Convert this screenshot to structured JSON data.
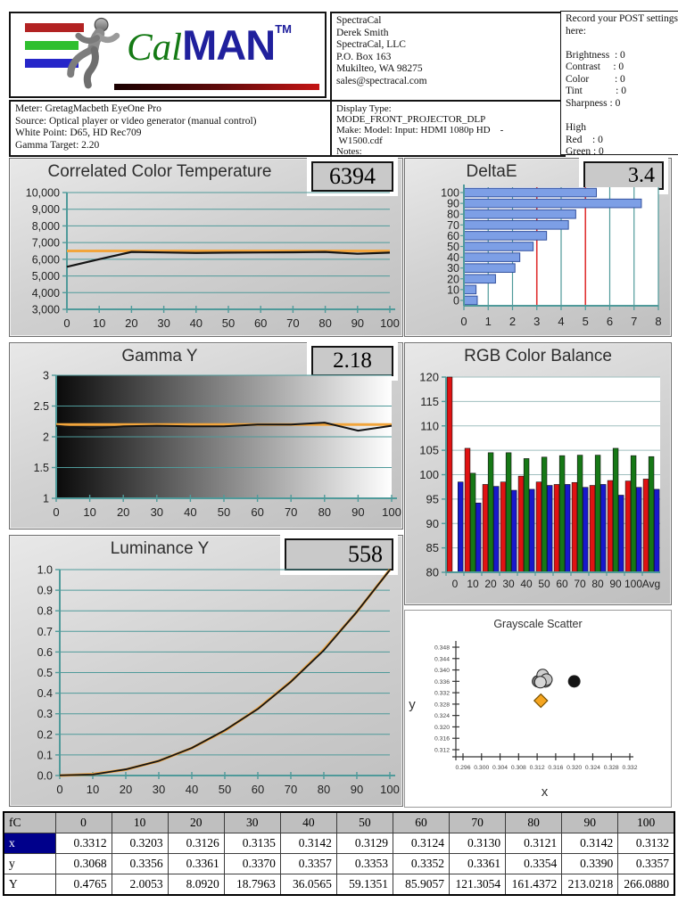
{
  "header": {
    "logo": {
      "cal": "Cal",
      "man": "MAN",
      "tm": "TM"
    },
    "meter_info": {
      "lines": [
        "Meter: GretagMacbeth EyeOne Pro",
        "Source: Optical player or video generator (manual control)",
        "White Point: D65, HD Rec709",
        "Gamma Target: 2.20"
      ]
    },
    "contact": {
      "lines": [
        "SpectraCal",
        "Derek Smith",
        "SpectraCal, LLC",
        "P.O. Box 163",
        "Mukilteo, WA 98275",
        "sales@spectracal.com"
      ]
    },
    "display_info": {
      "lines": [
        "Display Type:",
        "MODE_FRONT_PROJECTOR_DLP",
        "Make: Model: Input: HDMI 1080p HD    -",
        " W1500.cdf",
        "Notes:"
      ]
    },
    "post_settings": {
      "lines": [
        "Record your POST settings",
        "here:",
        "",
        "Brightness  : 0",
        "Contrast     : 0",
        "Color          : 0",
        "Tint             : 0",
        "Sharpness : 0",
        "",
        "High",
        "Red    : 0",
        "Green : 0"
      ]
    }
  },
  "chart_data": [
    {
      "type": "line",
      "title": "Correlated Color Temperature",
      "badge": "6394",
      "x": [
        0,
        10,
        20,
        30,
        40,
        50,
        60,
        70,
        80,
        90,
        100
      ],
      "series": [
        {
          "name": "measured CCT",
          "color": "#141414",
          "width": 2.2,
          "values": [
            5550,
            6000,
            6440,
            6410,
            6380,
            6400,
            6410,
            6420,
            6440,
            6330,
            6400
          ]
        }
      ],
      "target": {
        "value": 6500,
        "color": "#f2a53c"
      },
      "xlim": [
        0,
        100
      ],
      "xticks": [
        0,
        10,
        20,
        30,
        40,
        50,
        60,
        70,
        80,
        90,
        100
      ],
      "ylim": [
        3000,
        10000
      ],
      "yticks": [
        3000,
        4000,
        5000,
        6000,
        7000,
        8000,
        9000,
        10000
      ],
      "ytick_labels": [
        "3,000",
        "4,000",
        "5,000",
        "6,000",
        "7,000",
        "8,000",
        "9,000",
        "10,000"
      ],
      "grid": "horizontal"
    },
    {
      "type": "bar-horizontal",
      "title": "DeltaE",
      "badge": "3.4",
      "categories": [
        "100",
        "90",
        "80",
        "70",
        "60",
        "50",
        "40",
        "30",
        "20",
        "10",
        "0"
      ],
      "values": [
        5.45,
        7.3,
        4.6,
        4.3,
        3.4,
        2.85,
        2.3,
        2.1,
        1.3,
        0.5,
        0.55
      ],
      "xlim": [
        0,
        8
      ],
      "xticks": [
        0,
        1,
        2,
        3,
        4,
        5,
        6,
        7,
        8
      ],
      "reference_lines": [
        3,
        5
      ],
      "bar_color": "#7d9fe6",
      "bar_border": "#33519e",
      "reference_color": "#e03232",
      "grid": "vertical"
    },
    {
      "type": "line",
      "title": "Gamma Y",
      "badge": "2.18",
      "x": [
        0,
        10,
        20,
        30,
        40,
        50,
        60,
        70,
        80,
        90,
        100
      ],
      "series": [
        {
          "name": "measured gamma",
          "color": "#141414",
          "width": 2,
          "values": [
            2.18,
            2.13,
            2.17,
            2.18,
            2.17,
            2.17,
            2.2,
            2.2,
            2.23,
            2.1,
            2.18
          ]
        }
      ],
      "target": {
        "value": 2.2,
        "color": "#f2a53c"
      },
      "xlim": [
        0,
        100
      ],
      "xticks": [
        0,
        10,
        20,
        30,
        40,
        50,
        60,
        70,
        80,
        90,
        100
      ],
      "ylim": [
        1,
        3
      ],
      "yticks": [
        1,
        1.5,
        2,
        2.5,
        3
      ],
      "ytick_labels": [
        "1",
        "1.5",
        "2",
        "2.5",
        "3"
      ],
      "plot_background": "black-to-white-gradient",
      "grid": "horizontal"
    },
    {
      "type": "grouped-bar",
      "title": "RGB Color Balance",
      "categories": [
        "0",
        "10",
        "20",
        "30",
        "40",
        "50",
        "60",
        "70",
        "80",
        "90",
        "100",
        "Avg"
      ],
      "series": [
        {
          "name": "Red",
          "color": "#e01212",
          "values": [
            120,
            105.4,
            98,
            98.5,
            99.7,
            98.5,
            98,
            98.4,
            97.8,
            98.8,
            98.7,
            99.1
          ]
        },
        {
          "name": "Green",
          "color": "#167816",
          "values": [
            80,
            100.3,
            104.5,
            104.5,
            103.3,
            103.6,
            103.9,
            104,
            104,
            105.4,
            103.9,
            103.7
          ]
        },
        {
          "name": "Blue",
          "color": "#1818cc",
          "values": [
            98.5,
            94.2,
            97.6,
            96.8,
            97,
            97.8,
            98,
            97.4,
            98,
            95.8,
            97.4,
            97
          ]
        }
      ],
      "ylim": [
        80,
        120
      ],
      "yticks": [
        80,
        85,
        90,
        95,
        100,
        105,
        110,
        115,
        120
      ],
      "grid": "horizontal"
    },
    {
      "type": "line",
      "title": "Luminance Y",
      "badge": "558",
      "x": [
        0,
        10,
        20,
        30,
        40,
        50,
        60,
        70,
        80,
        90,
        100
      ],
      "series": [
        {
          "name": "target",
          "color": "#f2a53c",
          "width": 3,
          "values": [
            0,
            0.0063,
            0.0289,
            0.0707,
            0.1332,
            0.2176,
            0.325,
            0.4564,
            0.6125,
            0.7941,
            1.0
          ]
        },
        {
          "name": "measured",
          "color": "#141414",
          "width": 1.8,
          "values": [
            0.001,
            0.005,
            0.03,
            0.071,
            0.134,
            0.22,
            0.323,
            0.455,
            0.608,
            0.795,
            0.998
          ]
        }
      ],
      "xlim": [
        0,
        100
      ],
      "xticks": [
        0,
        10,
        20,
        30,
        40,
        50,
        60,
        70,
        80,
        90,
        100
      ],
      "ylim": [
        0,
        1
      ],
      "yticks": [
        0,
        0.1,
        0.2,
        0.3,
        0.4,
        0.5,
        0.6,
        0.7,
        0.8,
        0.9,
        1.0
      ],
      "ytick_labels": [
        "0.0",
        "0.1",
        "0.2",
        "0.3",
        "0.4",
        "0.5",
        "0.6",
        "0.7",
        "0.8",
        "0.9",
        "1.0"
      ],
      "grid": "horizontal"
    },
    {
      "type": "scatter",
      "title": "Grayscale Scatter",
      "xlabel": "x",
      "ylabel": "y",
      "xticks": [
        0.296,
        0.3,
        0.304,
        0.308,
        0.312,
        0.316,
        0.32,
        0.324,
        0.328,
        0.332
      ],
      "yticks": [
        0.312,
        0.316,
        0.32,
        0.324,
        0.328,
        0.332,
        0.336,
        0.34,
        0.344,
        0.348
      ],
      "points": [
        {
          "x": 0.3122,
          "y": 0.336,
          "shape": "circle",
          "color": "#7d7d7d"
        },
        {
          "x": 0.3138,
          "y": 0.336,
          "shape": "circle",
          "color": "#8a8a8a"
        },
        {
          "x": 0.3132,
          "y": 0.3382,
          "shape": "circle",
          "color": "#cfcfcf"
        },
        {
          "x": 0.314,
          "y": 0.3366,
          "shape": "circle",
          "color": "#c4c4c4"
        },
        {
          "x": 0.3127,
          "y": 0.3357,
          "shape": "circle",
          "color": "#d6d6d6"
        },
        {
          "x": 0.32,
          "y": 0.336,
          "shape": "circle",
          "color": "#141414"
        },
        {
          "x": 0.3128,
          "y": 0.3292,
          "shape": "diamond",
          "color": "#f5a520"
        }
      ]
    }
  ],
  "table": {
    "corner": "fC",
    "columns": [
      "0",
      "10",
      "20",
      "30",
      "40",
      "50",
      "60",
      "70",
      "80",
      "90",
      "100"
    ],
    "rows": [
      {
        "label": "x",
        "selected": true,
        "values": [
          "0.3312",
          "0.3203",
          "0.3126",
          "0.3135",
          "0.3142",
          "0.3129",
          "0.3124",
          "0.3130",
          "0.3121",
          "0.3142",
          "0.3132"
        ]
      },
      {
        "label": "y",
        "selected": false,
        "values": [
          "0.3068",
          "0.3356",
          "0.3361",
          "0.3370",
          "0.3357",
          "0.3353",
          "0.3352",
          "0.3361",
          "0.3354",
          "0.3390",
          "0.3357"
        ]
      },
      {
        "label": "Y",
        "selected": false,
        "values": [
          "0.4765",
          "2.0053",
          "8.0920",
          "18.7963",
          "36.0565",
          "59.1351",
          "85.9057",
          "121.3054",
          "161.4372",
          "213.0218",
          "266.0880"
        ]
      }
    ]
  },
  "colors": {
    "accent_orange": "#f2a53c",
    "grid_teal": "#4f9a9a",
    "bar_blue": "#7d9fe6",
    "reference_red": "#e03232",
    "selected_cell": "#00008b"
  }
}
